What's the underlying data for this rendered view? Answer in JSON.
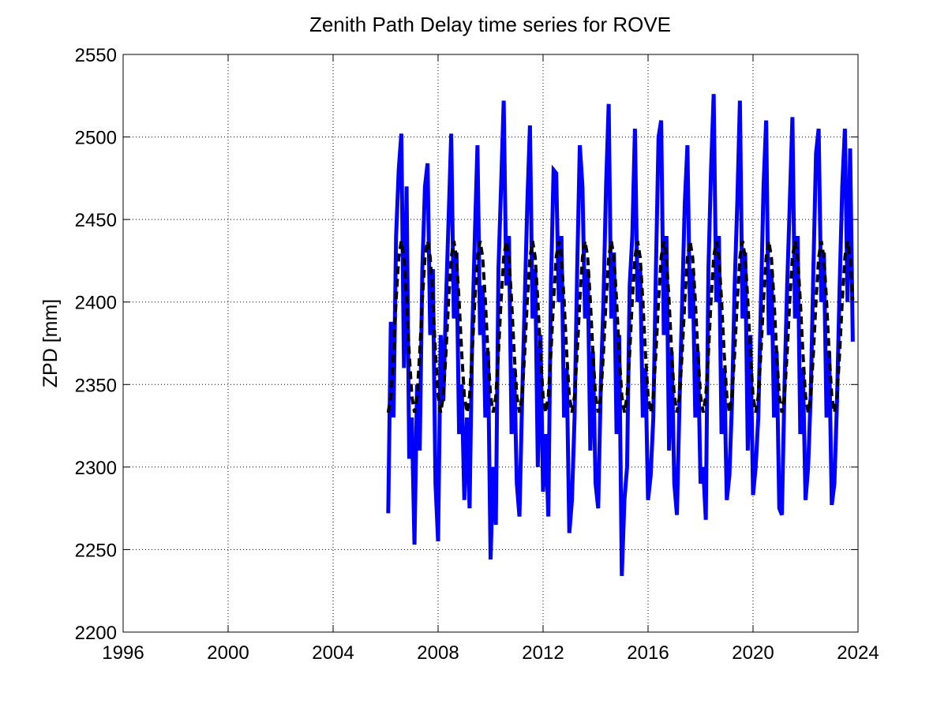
{
  "chart_data": {
    "type": "line",
    "title": "Zenith Path Delay time series for ROVE",
    "y_label": "ZPD [mm]",
    "xlim": [
      1996,
      2024
    ],
    "xticks": [
      1996,
      2000,
      2004,
      2008,
      2012,
      2016,
      2020,
      2024
    ],
    "ylim": [
      2200,
      2550
    ],
    "yticks": [
      2200,
      2250,
      2300,
      2350,
      2400,
      2450,
      2500,
      2550
    ],
    "grid": true,
    "x": [
      2006.1,
      2006.2,
      2006.3,
      2006.4,
      2006.5,
      2006.6,
      2006.7,
      2006.8,
      2006.9,
      2007.0,
      2007.1,
      2007.2,
      2007.3,
      2007.4,
      2007.5,
      2007.6,
      2007.7,
      2007.8,
      2007.9,
      2008.0,
      2008.1,
      2008.2,
      2008.3,
      2008.4,
      2008.5,
      2008.6,
      2008.7,
      2008.8,
      2008.9,
      2009.0,
      2009.1,
      2009.2,
      2009.3,
      2009.4,
      2009.5,
      2009.6,
      2009.7,
      2009.8,
      2009.9,
      2010.0,
      2010.1,
      2010.2,
      2010.3,
      2010.4,
      2010.5,
      2010.6,
      2010.7,
      2010.8,
      2010.9,
      2011.0,
      2011.1,
      2011.2,
      2011.3,
      2011.4,
      2011.5,
      2011.6,
      2011.7,
      2011.8,
      2011.9,
      2012.0,
      2012.1,
      2012.2,
      2012.3,
      2012.4,
      2012.5,
      2012.6,
      2012.7,
      2012.8,
      2012.9,
      2013.0,
      2013.1,
      2013.2,
      2013.3,
      2013.4,
      2013.5,
      2013.6,
      2013.7,
      2013.8,
      2013.9,
      2014.0,
      2014.1,
      2014.2,
      2014.3,
      2014.4,
      2014.5,
      2014.6,
      2014.7,
      2014.8,
      2014.9,
      2015.0,
      2015.1,
      2015.2,
      2015.3,
      2015.4,
      2015.5,
      2015.6,
      2015.7,
      2015.8,
      2015.9,
      2016.0,
      2016.1,
      2016.2,
      2016.3,
      2016.4,
      2016.5,
      2016.6,
      2016.7,
      2016.8,
      2016.9,
      2017.0,
      2017.1,
      2017.2,
      2017.3,
      2017.4,
      2017.5,
      2017.6,
      2017.7,
      2017.8,
      2017.9,
      2018.0,
      2018.1,
      2018.2,
      2018.3,
      2018.4,
      2018.5,
      2018.6,
      2018.7,
      2018.8,
      2018.9,
      2019.0,
      2019.1,
      2019.2,
      2019.3,
      2019.4,
      2019.5,
      2019.6,
      2019.7,
      2019.8,
      2019.9,
      2020.0,
      2020.1,
      2020.2,
      2020.3,
      2020.4,
      2020.5,
      2020.6,
      2020.7,
      2020.8,
      2020.9,
      2021.0,
      2021.1,
      2021.2,
      2021.3,
      2021.4,
      2021.5,
      2021.6,
      2021.7,
      2021.8,
      2021.9,
      2022.0,
      2022.1,
      2022.2,
      2022.3,
      2022.4,
      2022.5,
      2022.6,
      2022.7,
      2022.8,
      2022.9,
      2023.0,
      2023.1,
      2023.2,
      2023.3,
      2023.4,
      2023.5,
      2023.6,
      2023.7,
      2023.8
    ],
    "series": [
      {
        "color": "#0000ff",
        "line_style": "solid",
        "values": [
          2272,
          2388,
          2330,
          2440,
          2480,
          2502,
          2360,
          2470,
          2305,
          2330,
          2253,
          2350,
          2310,
          2420,
          2470,
          2484,
          2380,
          2420,
          2290,
          2255,
          2380,
          2340,
          2400,
          2450,
          2502,
          2390,
          2430,
          2320,
          2350,
          2280,
          2330,
          2275,
          2380,
          2440,
          2495,
          2380,
          2410,
          2330,
          2370,
          2244,
          2300,
          2265,
          2420,
          2470,
          2522,
          2410,
          2440,
          2320,
          2360,
          2290,
          2270,
          2340,
          2400,
          2460,
          2507,
          2390,
          2420,
          2300,
          2380,
          2285,
          2320,
          2270,
          2410,
          2480,
          2478,
          2400,
          2440,
          2330,
          2360,
          2260,
          2280,
          2330,
          2420,
          2495,
          2470,
          2390,
          2420,
          2310,
          2370,
          2290,
          2275,
          2350,
          2400,
          2470,
          2520,
          2390,
          2430,
          2320,
          2380,
          2234,
          2280,
          2300,
          2410,
          2440,
          2505,
          2400,
          2420,
          2330,
          2360,
          2280,
          2295,
          2330,
          2420,
          2500,
          2510,
          2380,
          2440,
          2310,
          2370,
          2290,
          2271,
          2340,
          2400,
          2460,
          2495,
          2390,
          2420,
          2330,
          2370,
          2290,
          2300,
          2268,
          2420,
          2480,
          2526,
          2400,
          2440,
          2320,
          2360,
          2280,
          2295,
          2340,
          2410,
          2460,
          2522,
          2390,
          2430,
          2310,
          2380,
          2283,
          2300,
          2330,
          2400,
          2470,
          2510,
          2380,
          2420,
          2330,
          2370,
          2275,
          2271,
          2350,
          2410,
          2460,
          2512,
          2390,
          2440,
          2320,
          2360,
          2280,
          2300,
          2345,
          2420,
          2490,
          2505,
          2400,
          2430,
          2330,
          2370,
          2277,
          2290,
          2340,
          2410,
          2470,
          2505,
          2400,
          2493,
          2376
        ]
      },
      {
        "color": "#000000",
        "line_style": "dashed",
        "values": [
          2333,
          2343,
          2369,
          2401,
          2427,
          2437,
          2427,
          2401,
          2369,
          2343,
          2333,
          2343,
          2369,
          2401,
          2427,
          2437,
          2427,
          2401,
          2369,
          2343,
          2333,
          2343,
          2369,
          2401,
          2427,
          2437,
          2427,
          2401,
          2369,
          2343,
          2333,
          2343,
          2369,
          2401,
          2427,
          2437,
          2427,
          2401,
          2369,
          2343,
          2333,
          2343,
          2369,
          2401,
          2427,
          2437,
          2427,
          2401,
          2369,
          2343,
          2333,
          2343,
          2369,
          2401,
          2427,
          2437,
          2427,
          2401,
          2369,
          2343,
          2333,
          2343,
          2369,
          2401,
          2427,
          2437,
          2427,
          2401,
          2369,
          2343,
          2333,
          2343,
          2369,
          2401,
          2427,
          2437,
          2427,
          2401,
          2369,
          2343,
          2333,
          2343,
          2369,
          2401,
          2427,
          2437,
          2427,
          2401,
          2369,
          2343,
          2333,
          2343,
          2369,
          2401,
          2427,
          2437,
          2427,
          2401,
          2369,
          2343,
          2333,
          2343,
          2369,
          2401,
          2427,
          2437,
          2427,
          2401,
          2369,
          2343,
          2333,
          2343,
          2369,
          2401,
          2427,
          2437,
          2427,
          2401,
          2369,
          2343,
          2333,
          2343,
          2369,
          2401,
          2427,
          2437,
          2427,
          2401,
          2369,
          2343,
          2333,
          2343,
          2369,
          2401,
          2427,
          2437,
          2427,
          2401,
          2369,
          2343,
          2333,
          2343,
          2369,
          2401,
          2427,
          2437,
          2427,
          2401,
          2369,
          2343,
          2333,
          2343,
          2369,
          2401,
          2427,
          2437,
          2427,
          2401,
          2369,
          2343,
          2333,
          2343,
          2369,
          2401,
          2427,
          2437,
          2427,
          2401,
          2369,
          2343,
          2333,
          2343,
          2369,
          2401,
          2427,
          2437,
          2427,
          2401
        ]
      }
    ]
  }
}
